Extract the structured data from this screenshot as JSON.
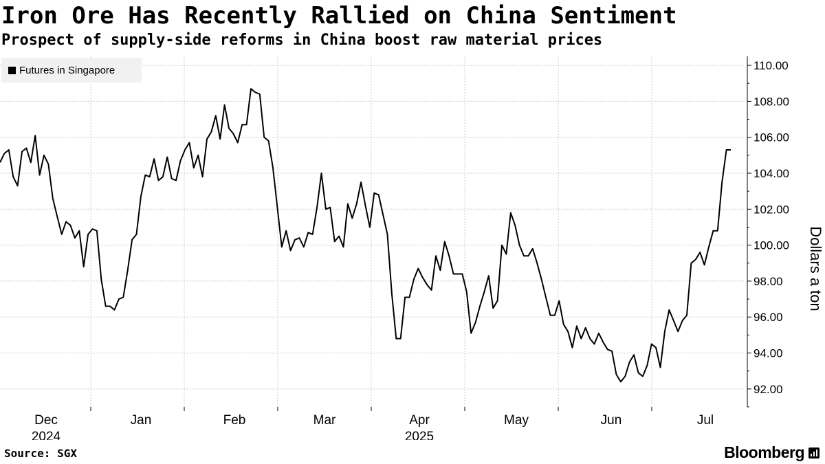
{
  "title": "Iron Ore Has Recently Rallied on China Sentiment",
  "subtitle": "Prospect of supply-side reforms in China boost raw material prices",
  "source": "Source: SGX",
  "brand": "Bloomberg",
  "colors": {
    "line": "#000000",
    "grid": "#cccccc",
    "legend_bg": "#f1f1f1"
  },
  "chart_data": {
    "type": "line",
    "title": "Iron Ore Has Recently Rallied on China Sentiment",
    "xlabel": "",
    "ylabel": "Dollars a ton",
    "ylim": [
      91,
      110.5
    ],
    "yticks": [
      92,
      94,
      96,
      98,
      100,
      102,
      104,
      106,
      108,
      110
    ],
    "ytick_labels": [
      "92.00",
      "94.00",
      "96.00",
      "98.00",
      "100.00",
      "102.00",
      "104.00",
      "106.00",
      "108.00",
      "110.00"
    ],
    "x_period_labels": [
      "Dec",
      "Jan",
      "Feb",
      "Mar",
      "Apr",
      "May",
      "Jun",
      "Jul"
    ],
    "x_year_labels": [
      {
        "label": "2024",
        "under_period": 0
      },
      {
        "label": "2025",
        "under_period": 4
      }
    ],
    "legend_position": "top-left",
    "series": [
      {
        "name": "Futures in Singapore",
        "x_start": "2024-11-20",
        "x_end": "2025-07-21",
        "values": [
          104.6,
          105.1,
          105.3,
          103.8,
          103.3,
          105.2,
          105.4,
          104.6,
          106.1,
          103.9,
          105.0,
          104.5,
          102.6,
          101.6,
          100.6,
          101.3,
          101.1,
          100.4,
          100.8,
          98.8,
          100.6,
          100.9,
          100.8,
          98.1,
          96.6,
          96.6,
          96.4,
          97.0,
          97.1,
          98.6,
          100.3,
          100.6,
          102.7,
          103.9,
          103.8,
          104.8,
          103.6,
          103.8,
          104.9,
          103.7,
          103.6,
          104.7,
          105.3,
          105.7,
          104.3,
          105.0,
          103.8,
          105.9,
          106.3,
          107.2,
          105.9,
          107.8,
          106.5,
          106.2,
          105.7,
          106.7,
          106.7,
          108.7,
          108.5,
          108.4,
          106.0,
          105.8,
          104.3,
          102.1,
          99.9,
          100.8,
          99.7,
          100.3,
          100.4,
          99.9,
          100.7,
          100.6,
          102.1,
          104.0,
          102.0,
          102.1,
          100.2,
          100.5,
          99.9,
          102.3,
          101.5,
          102.3,
          103.5,
          102.2,
          101.0,
          102.9,
          102.8,
          101.7,
          100.6,
          97.3,
          94.8,
          94.8,
          97.1,
          97.1,
          98.1,
          98.7,
          98.2,
          97.8,
          97.5,
          99.4,
          98.6,
          100.2,
          99.4,
          98.4,
          98.4,
          98.4,
          97.4,
          95.1,
          95.7,
          96.6,
          97.4,
          98.3,
          96.5,
          96.9,
          100.0,
          99.5,
          101.8,
          101.1,
          100.0,
          99.4,
          99.4,
          99.8,
          99.0,
          98.1,
          97.1,
          96.1,
          96.1,
          96.9,
          95.6,
          95.2,
          94.3,
          95.5,
          94.8,
          95.4,
          94.8,
          94.5,
          95.1,
          94.6,
          94.2,
          94.1,
          92.8,
          92.4,
          92.7,
          93.5,
          93.9,
          92.9,
          92.7,
          93.3,
          94.5,
          94.3,
          93.2,
          95.2,
          96.4,
          95.8,
          95.2,
          95.8,
          96.1,
          99.0,
          99.2,
          99.6,
          98.9,
          99.9,
          100.8,
          100.8,
          103.5,
          105.3,
          105.3
        ]
      }
    ]
  }
}
